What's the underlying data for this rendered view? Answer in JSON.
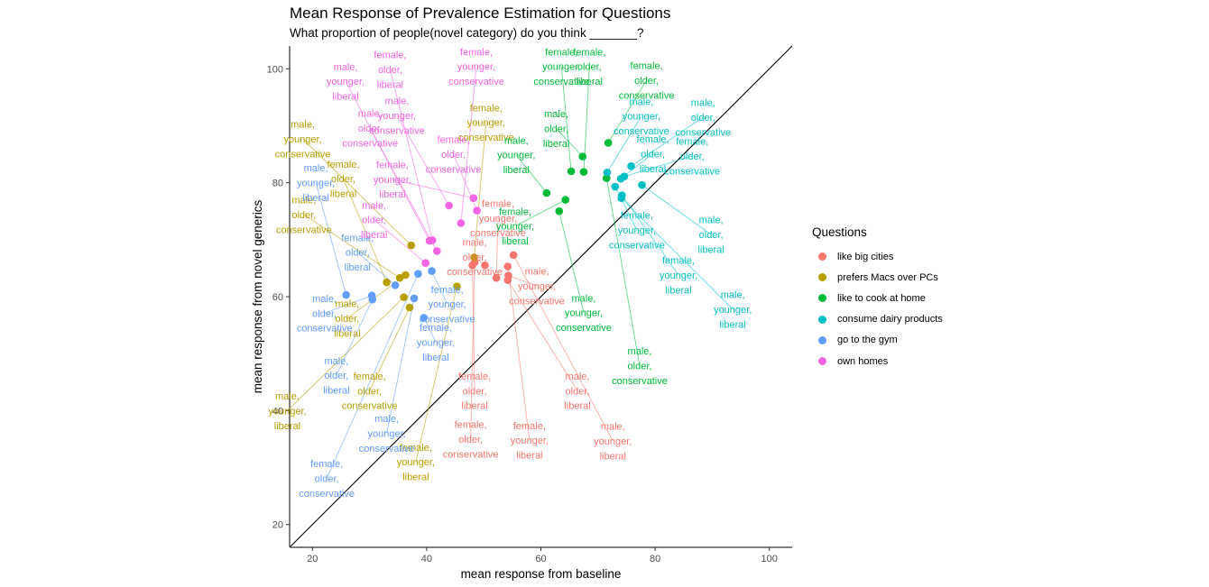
{
  "chart_data": {
    "type": "scatter",
    "title": "Mean Response of Prevalence Estimation for Questions",
    "subtitle": "What proportion of people(novel category) do you think _______?",
    "xlabel": "mean response from baseline",
    "ylabel": "mean response from novel generics",
    "xlim": [
      16,
      104
    ],
    "ylim": [
      16,
      104
    ],
    "xticks": [
      "20",
      "40",
      "60",
      "80",
      "100"
    ],
    "yticks": [
      "20",
      "40",
      "60",
      "80",
      "100"
    ],
    "reference_line": "y = x",
    "grid": false,
    "legend_title": "Questions",
    "legend_position": "right",
    "series": [
      {
        "name": "like big cities",
        "color": "#F8766D",
        "points": [
          {
            "x": 48.0,
            "y": 65.5,
            "label": [
              "female,",
              "older,",
              "liberal"
            ],
            "lx": 48.4,
            "ly": 43.5
          },
          {
            "x": 48.4,
            "y": 66.0,
            "label": [
              "female,",
              "older,",
              "conservative"
            ],
            "lx": 47.7,
            "ly": 35.0
          },
          {
            "x": 50.2,
            "y": 65.5,
            "label": [
              "male,",
              "older,",
              "conservative"
            ],
            "lx": 48.4,
            "ly": 67.0
          },
          {
            "x": 52.2,
            "y": 63.3,
            "label": [
              "female,",
              "younger,",
              "conservative"
            ],
            "lx": 52.5,
            "ly": 73.8
          },
          {
            "x": 54.2,
            "y": 65.3,
            "label": [
              "female,",
              "younger,",
              "liberal"
            ],
            "lx": 58.0,
            "ly": 34.8
          },
          {
            "x": 54.3,
            "y": 63.7,
            "label": [
              "male,",
              "younger,",
              "conservative"
            ],
            "lx": 59.3,
            "ly": 61.9
          },
          {
            "x": 54.2,
            "y": 62.9,
            "label": [
              "male,",
              "older,",
              "liberal"
            ],
            "lx": 66.4,
            "ly": 43.5
          },
          {
            "x": 55.2,
            "y": 67.3,
            "label": [
              "male,",
              "younger,",
              "liberal"
            ],
            "lx": 72.6,
            "ly": 34.7
          }
        ]
      },
      {
        "name": "prefers Macs over PCs",
        "color": "#B79F00",
        "points": [
          {
            "x": 37.3,
            "y": 69.0,
            "label": [
              "male,",
              "younger,",
              "conservative"
            ],
            "lx": 18.3,
            "ly": 87.7
          },
          {
            "x": 33.0,
            "y": 62.5,
            "label": [
              "female,",
              "older,",
              "liberal"
            ],
            "lx": 25.4,
            "ly": 80.7
          },
          {
            "x": 35.3,
            "y": 63.3,
            "label": [
              "male,",
              "older,",
              "conservative"
            ],
            "lx": 18.5,
            "ly": 74.4
          },
          {
            "x": 36.0,
            "y": 59.9,
            "label": [
              "male,",
              "younger,",
              "liberal"
            ],
            "lx": 15.6,
            "ly": 40.0
          },
          {
            "x": 36.3,
            "y": 63.8,
            "label": [
              "male,",
              "older,",
              "liberal"
            ],
            "lx": 26.1,
            "ly": 56.2
          },
          {
            "x": 37.0,
            "y": 58.1,
            "label": [
              "female,",
              "older,",
              "conservative"
            ],
            "lx": 30.0,
            "ly": 43.5
          },
          {
            "x": 45.3,
            "y": 61.8,
            "label": [
              "female,",
              "younger,",
              "liberal"
            ],
            "lx": 38.1,
            "ly": 31.0
          },
          {
            "x": 48.3,
            "y": 66.9,
            "label": [
              "female,",
              "younger,",
              "conservative"
            ],
            "lx": 50.4,
            "ly": 90.6
          }
        ]
      },
      {
        "name": "like to cook at home",
        "color": "#00BA38",
        "points": [
          {
            "x": 65.3,
            "y": 82.0,
            "label": [
              "female,",
              "younger,",
              "conservative"
            ],
            "lx": 63.6,
            "ly": 100.4
          },
          {
            "x": 67.5,
            "y": 81.9,
            "label": [
              "female,",
              "older,",
              "liberal"
            ],
            "lx": 68.5,
            "ly": 100.4
          },
          {
            "x": 67.3,
            "y": 84.6,
            "label": [
              "male,",
              "older,",
              "liberal"
            ],
            "lx": 62.7,
            "ly": 89.5
          },
          {
            "x": 71.8,
            "y": 87.0,
            "label": [
              "female,",
              "older,",
              "conservative"
            ],
            "lx": 78.5,
            "ly": 98.0
          },
          {
            "x": 61.0,
            "y": 78.2,
            "label": [
              "male,",
              "younger,",
              "liberal"
            ],
            "lx": 55.7,
            "ly": 84.9
          },
          {
            "x": 64.3,
            "y": 77.0,
            "label": [
              "female,",
              "younger,",
              "liberal"
            ],
            "lx": 55.5,
            "ly": 72.4
          },
          {
            "x": 63.2,
            "y": 75.0,
            "label": [
              "male,",
              "younger,",
              "conservative"
            ],
            "lx": 67.5,
            "ly": 57.2
          },
          {
            "x": 71.5,
            "y": 80.8,
            "label": [
              "male,",
              "older,",
              "conservative"
            ],
            "lx": 77.3,
            "ly": 47.9
          }
        ]
      },
      {
        "name": "consume dairy products",
        "color": "#00BFC4",
        "points": [
          {
            "x": 71.6,
            "y": 81.8,
            "label": [
              "male,",
              "younger,",
              "conservative"
            ],
            "lx": 77.6,
            "ly": 91.7
          },
          {
            "x": 75.8,
            "y": 82.9,
            "label": [
              "male,",
              "older,",
              "conservative"
            ],
            "lx": 88.4,
            "ly": 91.5
          },
          {
            "x": 74.0,
            "y": 80.7,
            "label": [
              "female,",
              "older,",
              "liberal"
            ],
            "lx": 79.6,
            "ly": 85.1
          },
          {
            "x": 74.6,
            "y": 81.1,
            "label": [
              "female,",
              "older,",
              "conservative"
            ],
            "lx": 86.5,
            "ly": 84.7
          },
          {
            "x": 73.0,
            "y": 79.3,
            "label": [
              "female,",
              "younger,",
              "conservative"
            ],
            "lx": 76.8,
            "ly": 71.7
          },
          {
            "x": 77.7,
            "y": 79.6,
            "label": [
              "male,",
              "older,",
              "liberal"
            ],
            "lx": 89.8,
            "ly": 70.9
          },
          {
            "x": 74.2,
            "y": 77.8,
            "label": [
              "female,",
              "younger,",
              "liberal"
            ],
            "lx": 84.1,
            "ly": 63.8
          },
          {
            "x": 74.1,
            "y": 77.3,
            "label": [
              "male,",
              "younger,",
              "liberal"
            ],
            "lx": 93.6,
            "ly": 57.8
          }
        ]
      },
      {
        "name": "go to the gym",
        "color": "#619CFF",
        "points": [
          {
            "x": 25.9,
            "y": 60.3,
            "label": [
              "male,",
              "younger,",
              "liberal"
            ],
            "lx": 20.6,
            "ly": 80.0
          },
          {
            "x": 30.4,
            "y": 60.2,
            "label": [
              "male,",
              "older,",
              "conservative"
            ],
            "lx": 22.1,
            "ly": 57.1
          },
          {
            "x": 30.5,
            "y": 59.5,
            "label": [
              "male,",
              "older,",
              "liberal"
            ],
            "lx": 24.2,
            "ly": 46.2
          },
          {
            "x": 34.5,
            "y": 62.0,
            "label": [
              "female,",
              "older,",
              "liberal"
            ],
            "lx": 27.9,
            "ly": 67.8
          },
          {
            "x": 37.8,
            "y": 59.7,
            "label": [
              "male,",
              "younger,",
              "conservative"
            ],
            "lx": 33.0,
            "ly": 36.0
          },
          {
            "x": 38.5,
            "y": 64.0,
            "label": [
              "female,",
              "older,",
              "conservative"
            ],
            "lx": 22.5,
            "ly": 28.1
          },
          {
            "x": 39.5,
            "y": 56.3,
            "label": [
              "female,",
              "younger,",
              "liberal"
            ],
            "lx": 41.6,
            "ly": 52.0
          },
          {
            "x": 40.9,
            "y": 64.5,
            "label": [
              "female,",
              "younger,",
              "conservative"
            ],
            "lx": 43.6,
            "ly": 58.7
          }
        ]
      },
      {
        "name": "own homes",
        "color": "#F564E3",
        "points": [
          {
            "x": 40.5,
            "y": 69.8,
            "label": [
              "male,",
              "younger,",
              "liberal"
            ],
            "lx": 25.8,
            "ly": 97.8
          },
          {
            "x": 41.0,
            "y": 69.9,
            "label": [
              "female,",
              "older,",
              "liberal"
            ],
            "lx": 33.6,
            "ly": 99.9
          },
          {
            "x": 41.8,
            "y": 68.0,
            "label": [
              "male,",
              "older,",
              "conservative"
            ],
            "lx": 30.1,
            "ly": 89.6
          },
          {
            "x": 39.8,
            "y": 65.9,
            "label": [
              "male,",
              "older,",
              "liberal"
            ],
            "lx": 30.8,
            "ly": 73.5
          },
          {
            "x": 43.9,
            "y": 76.0,
            "label": [
              "male,",
              "younger,",
              "conservative"
            ],
            "lx": 34.8,
            "ly": 91.8
          },
          {
            "x": 48.2,
            "y": 77.3,
            "label": [
              "female,",
              "younger,",
              "liberal"
            ],
            "lx": 34.0,
            "ly": 80.6
          },
          {
            "x": 48.8,
            "y": 75.1,
            "label": [
              "female,",
              "older,",
              "conservative"
            ],
            "lx": 44.7,
            "ly": 85.0
          },
          {
            "x": 46.0,
            "y": 72.9,
            "label": [
              "female,",
              "younger,",
              "conservative"
            ],
            "lx": 48.7,
            "ly": 100.4
          }
        ]
      }
    ]
  }
}
